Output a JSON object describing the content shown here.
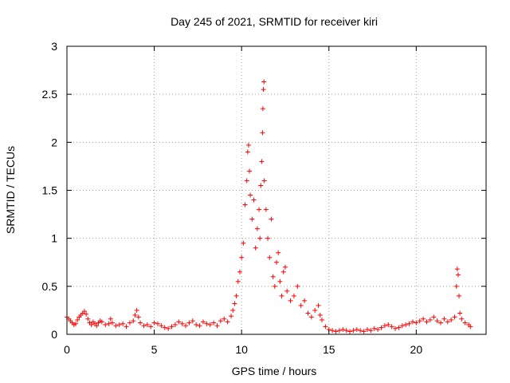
{
  "chart_data": {
    "type": "scatter",
    "title": "Day 245 of 2021, SRMTID for receiver kiri",
    "xlabel": "GPS time / hours",
    "ylabel": "SRMTID / TECUs",
    "xlim": [
      0,
      24
    ],
    "ylim": [
      0,
      3
    ],
    "x_ticks": [
      0,
      5,
      10,
      15,
      20
    ],
    "x_tick_labels": [
      "0",
      "5",
      "10",
      "15",
      "20"
    ],
    "y_ticks": [
      0,
      0.5,
      1,
      1.5,
      2,
      2.5,
      3
    ],
    "y_tick_labels": [
      "0",
      "0.5",
      "1",
      "1.5",
      "2",
      "2.5",
      "3"
    ],
    "grid": true,
    "marker": "+",
    "series": [
      {
        "name": "SRMTID",
        "color": "#ff0000",
        "points": [
          [
            0.0,
            0.18
          ],
          [
            0.1,
            0.16
          ],
          [
            0.2,
            0.14
          ],
          [
            0.3,
            0.12
          ],
          [
            0.4,
            0.1
          ],
          [
            0.5,
            0.11
          ],
          [
            0.6,
            0.15
          ],
          [
            0.7,
            0.18
          ],
          [
            0.8,
            0.2
          ],
          [
            0.9,
            0.22
          ],
          [
            1.0,
            0.24
          ],
          [
            1.1,
            0.21
          ],
          [
            1.2,
            0.16
          ],
          [
            1.3,
            0.12
          ],
          [
            1.4,
            0.1
          ],
          [
            1.5,
            0.13
          ],
          [
            1.6,
            0.11
          ],
          [
            1.7,
            0.09
          ],
          [
            1.8,
            0.12
          ],
          [
            1.9,
            0.14
          ],
          [
            2.0,
            0.13
          ],
          [
            2.2,
            0.1
          ],
          [
            2.4,
            0.11
          ],
          [
            2.5,
            0.16
          ],
          [
            2.6,
            0.12
          ],
          [
            2.8,
            0.09
          ],
          [
            3.0,
            0.1
          ],
          [
            3.2,
            0.11
          ],
          [
            3.4,
            0.08
          ],
          [
            3.6,
            0.12
          ],
          [
            3.8,
            0.14
          ],
          [
            3.9,
            0.2
          ],
          [
            4.0,
            0.25
          ],
          [
            4.1,
            0.18
          ],
          [
            4.2,
            0.12
          ],
          [
            4.4,
            0.09
          ],
          [
            4.6,
            0.1
          ],
          [
            4.8,
            0.08
          ],
          [
            5.0,
            0.12
          ],
          [
            5.2,
            0.11
          ],
          [
            5.4,
            0.09
          ],
          [
            5.6,
            0.07
          ],
          [
            5.8,
            0.06
          ],
          [
            6.0,
            0.08
          ],
          [
            6.2,
            0.1
          ],
          [
            6.4,
            0.13
          ],
          [
            6.6,
            0.11
          ],
          [
            6.8,
            0.09
          ],
          [
            7.0,
            0.12
          ],
          [
            7.2,
            0.14
          ],
          [
            7.4,
            0.1
          ],
          [
            7.6,
            0.09
          ],
          [
            7.8,
            0.13
          ],
          [
            8.0,
            0.11
          ],
          [
            8.2,
            0.1
          ],
          [
            8.4,
            0.12
          ],
          [
            8.6,
            0.09
          ],
          [
            8.8,
            0.14
          ],
          [
            9.0,
            0.16
          ],
          [
            9.2,
            0.13
          ],
          [
            9.4,
            0.19
          ],
          [
            9.5,
            0.25
          ],
          [
            9.6,
            0.32
          ],
          [
            9.7,
            0.4
          ],
          [
            9.8,
            0.55
          ],
          [
            9.9,
            0.65
          ],
          [
            10.0,
            0.8
          ],
          [
            10.1,
            0.95
          ],
          [
            10.2,
            1.35
          ],
          [
            10.3,
            1.6
          ],
          [
            10.35,
            1.9
          ],
          [
            10.4,
            1.97
          ],
          [
            10.45,
            1.7
          ],
          [
            10.5,
            1.45
          ],
          [
            10.6,
            1.2
          ],
          [
            10.7,
            1.4
          ],
          [
            10.8,
            0.9
          ],
          [
            10.9,
            1.1
          ],
          [
            11.0,
            1.3
          ],
          [
            11.05,
            1.0
          ],
          [
            11.1,
            1.55
          ],
          [
            11.15,
            1.8
          ],
          [
            11.2,
            2.1
          ],
          [
            11.22,
            2.35
          ],
          [
            11.25,
            2.55
          ],
          [
            11.28,
            2.63
          ],
          [
            11.3,
            1.6
          ],
          [
            11.4,
            1.3
          ],
          [
            11.5,
            1.0
          ],
          [
            11.6,
            0.8
          ],
          [
            11.7,
            1.2
          ],
          [
            11.8,
            0.6
          ],
          [
            11.9,
            0.5
          ],
          [
            12.0,
            0.75
          ],
          [
            12.1,
            0.85
          ],
          [
            12.2,
            0.55
          ],
          [
            12.3,
            0.4
          ],
          [
            12.4,
            0.65
          ],
          [
            12.5,
            0.7
          ],
          [
            12.6,
            0.45
          ],
          [
            12.8,
            0.35
          ],
          [
            13.0,
            0.4
          ],
          [
            13.2,
            0.5
          ],
          [
            13.4,
            0.3
          ],
          [
            13.6,
            0.35
          ],
          [
            13.8,
            0.22
          ],
          [
            14.0,
            0.18
          ],
          [
            14.2,
            0.25
          ],
          [
            14.4,
            0.3
          ],
          [
            14.5,
            0.2
          ],
          [
            14.6,
            0.15
          ],
          [
            14.8,
            0.08
          ],
          [
            15.0,
            0.05
          ],
          [
            15.2,
            0.04
          ],
          [
            15.4,
            0.03
          ],
          [
            15.6,
            0.04
          ],
          [
            15.8,
            0.05
          ],
          [
            16.0,
            0.04
          ],
          [
            16.2,
            0.03
          ],
          [
            16.4,
            0.04
          ],
          [
            16.6,
            0.05
          ],
          [
            16.8,
            0.04
          ],
          [
            17.0,
            0.03
          ],
          [
            17.2,
            0.05
          ],
          [
            17.4,
            0.04
          ],
          [
            17.6,
            0.06
          ],
          [
            17.8,
            0.05
          ],
          [
            18.0,
            0.07
          ],
          [
            18.2,
            0.09
          ],
          [
            18.4,
            0.1
          ],
          [
            18.6,
            0.08
          ],
          [
            18.8,
            0.06
          ],
          [
            19.0,
            0.07
          ],
          [
            19.2,
            0.09
          ],
          [
            19.4,
            0.1
          ],
          [
            19.6,
            0.11
          ],
          [
            19.8,
            0.13
          ],
          [
            20.0,
            0.12
          ],
          [
            20.2,
            0.14
          ],
          [
            20.4,
            0.16
          ],
          [
            20.6,
            0.13
          ],
          [
            20.8,
            0.15
          ],
          [
            21.0,
            0.18
          ],
          [
            21.2,
            0.14
          ],
          [
            21.4,
            0.12
          ],
          [
            21.6,
            0.16
          ],
          [
            21.8,
            0.13
          ],
          [
            22.0,
            0.15
          ],
          [
            22.2,
            0.18
          ],
          [
            22.3,
            0.5
          ],
          [
            22.35,
            0.68
          ],
          [
            22.4,
            0.62
          ],
          [
            22.45,
            0.4
          ],
          [
            22.5,
            0.22
          ],
          [
            22.6,
            0.16
          ],
          [
            22.8,
            0.12
          ],
          [
            23.0,
            0.1
          ],
          [
            23.1,
            0.08
          ]
        ]
      }
    ]
  }
}
